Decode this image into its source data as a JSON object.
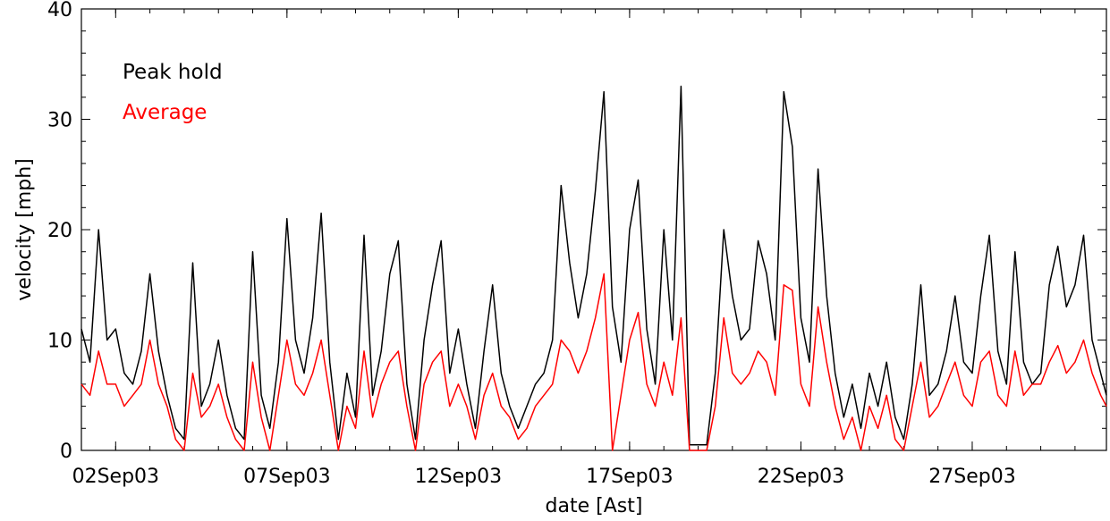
{
  "chart_data": {
    "type": "line",
    "title": "",
    "xlabel": "date [Ast]",
    "ylabel": "velocity [mph]",
    "xlim": [
      "2003-09-01T00:00",
      "2003-09-30T22:00"
    ],
    "ylim": [
      0,
      40
    ],
    "x_ticks": [
      "02Sep03",
      "07Sep03",
      "12Sep03",
      "17Sep03",
      "22Sep03",
      "27Sep03"
    ],
    "x_tick_dates": [
      "2003-09-02",
      "2003-09-07",
      "2003-09-12",
      "2003-09-17",
      "2003-09-22",
      "2003-09-27"
    ],
    "y_ticks": [
      "0",
      "10",
      "20",
      "30",
      "40"
    ],
    "y_tick_values": [
      0,
      10,
      20,
      30,
      40
    ],
    "grid": false,
    "legend": "top-left",
    "series": [
      {
        "name": "Peak hold",
        "color": "#000000",
        "points": [
          [
            "2003-09-01T00:00",
            11
          ],
          [
            "2003-09-01T06:00",
            8
          ],
          [
            "2003-09-01T12:00",
            20
          ],
          [
            "2003-09-01T18:00",
            10
          ],
          [
            "2003-09-02T00:00",
            11
          ],
          [
            "2003-09-02T06:00",
            7
          ],
          [
            "2003-09-02T12:00",
            6
          ],
          [
            "2003-09-02T18:00",
            9
          ],
          [
            "2003-09-03T00:00",
            16
          ],
          [
            "2003-09-03T06:00",
            9
          ],
          [
            "2003-09-03T12:00",
            5
          ],
          [
            "2003-09-03T18:00",
            2
          ],
          [
            "2003-09-04T00:00",
            1
          ],
          [
            "2003-09-04T06:00",
            17
          ],
          [
            "2003-09-04T12:00",
            4
          ],
          [
            "2003-09-04T18:00",
            6
          ],
          [
            "2003-09-05T00:00",
            10
          ],
          [
            "2003-09-05T06:00",
            5
          ],
          [
            "2003-09-05T12:00",
            2
          ],
          [
            "2003-09-05T18:00",
            1
          ],
          [
            "2003-09-06T00:00",
            18
          ],
          [
            "2003-09-06T06:00",
            5
          ],
          [
            "2003-09-06T12:00",
            2
          ],
          [
            "2003-09-06T18:00",
            8
          ],
          [
            "2003-09-07T00:00",
            21
          ],
          [
            "2003-09-07T06:00",
            10
          ],
          [
            "2003-09-07T12:00",
            7
          ],
          [
            "2003-09-07T18:00",
            12
          ],
          [
            "2003-09-08T00:00",
            21.5
          ],
          [
            "2003-09-08T06:00",
            8
          ],
          [
            "2003-09-08T12:00",
            1
          ],
          [
            "2003-09-08T18:00",
            7
          ],
          [
            "2003-09-09T00:00",
            3
          ],
          [
            "2003-09-09T06:00",
            19.5
          ],
          [
            "2003-09-09T12:00",
            5
          ],
          [
            "2003-09-09T18:00",
            9
          ],
          [
            "2003-09-10T00:00",
            16
          ],
          [
            "2003-09-10T06:00",
            19
          ],
          [
            "2003-09-10T12:00",
            6
          ],
          [
            "2003-09-10T18:00",
            1
          ],
          [
            "2003-09-11T00:00",
            10
          ],
          [
            "2003-09-11T06:00",
            15
          ],
          [
            "2003-09-11T12:00",
            19
          ],
          [
            "2003-09-11T18:00",
            7
          ],
          [
            "2003-09-12T00:00",
            11
          ],
          [
            "2003-09-12T06:00",
            6
          ],
          [
            "2003-09-12T12:00",
            2
          ],
          [
            "2003-09-12T18:00",
            9
          ],
          [
            "2003-09-13T00:00",
            15
          ],
          [
            "2003-09-13T06:00",
            7
          ],
          [
            "2003-09-13T12:00",
            4
          ],
          [
            "2003-09-13T18:00",
            2
          ],
          [
            "2003-09-14T00:00",
            4
          ],
          [
            "2003-09-14T06:00",
            6
          ],
          [
            "2003-09-14T12:00",
            7
          ],
          [
            "2003-09-14T18:00",
            10
          ],
          [
            "2003-09-15T00:00",
            24
          ],
          [
            "2003-09-15T06:00",
            17
          ],
          [
            "2003-09-15T12:00",
            12
          ],
          [
            "2003-09-15T18:00",
            16
          ],
          [
            "2003-09-16T00:00",
            23.5
          ],
          [
            "2003-09-16T06:00",
            32.5
          ],
          [
            "2003-09-16T12:00",
            13
          ],
          [
            "2003-09-16T18:00",
            8
          ],
          [
            "2003-09-17T00:00",
            20
          ],
          [
            "2003-09-17T06:00",
            24.5
          ],
          [
            "2003-09-17T12:00",
            11
          ],
          [
            "2003-09-17T18:00",
            6
          ],
          [
            "2003-09-18T00:00",
            20
          ],
          [
            "2003-09-18T06:00",
            10
          ],
          [
            "2003-09-18T12:00",
            33
          ],
          [
            "2003-09-18T18:00",
            0.5
          ],
          [
            "2003-09-19T00:00",
            0.5
          ],
          [
            "2003-09-19T06:00",
            0.5
          ],
          [
            "2003-09-19T12:00",
            7
          ],
          [
            "2003-09-19T18:00",
            20
          ],
          [
            "2003-09-20T00:00",
            14
          ],
          [
            "2003-09-20T06:00",
            10
          ],
          [
            "2003-09-20T12:00",
            11
          ],
          [
            "2003-09-20T18:00",
            19
          ],
          [
            "2003-09-21T00:00",
            16
          ],
          [
            "2003-09-21T06:00",
            10
          ],
          [
            "2003-09-21T12:00",
            32.5
          ],
          [
            "2003-09-21T18:00",
            27.5
          ],
          [
            "2003-09-22T00:00",
            12
          ],
          [
            "2003-09-22T06:00",
            8
          ],
          [
            "2003-09-22T12:00",
            25.5
          ],
          [
            "2003-09-22T18:00",
            14
          ],
          [
            "2003-09-23T00:00",
            7
          ],
          [
            "2003-09-23T06:00",
            3
          ],
          [
            "2003-09-23T12:00",
            6
          ],
          [
            "2003-09-23T18:00",
            2
          ],
          [
            "2003-09-24T00:00",
            7
          ],
          [
            "2003-09-24T06:00",
            4
          ],
          [
            "2003-09-24T12:00",
            8
          ],
          [
            "2003-09-24T18:00",
            3
          ],
          [
            "2003-09-25T00:00",
            1
          ],
          [
            "2003-09-25T06:00",
            6
          ],
          [
            "2003-09-25T12:00",
            15
          ],
          [
            "2003-09-25T18:00",
            5
          ],
          [
            "2003-09-26T00:00",
            6
          ],
          [
            "2003-09-26T06:00",
            9
          ],
          [
            "2003-09-26T12:00",
            14
          ],
          [
            "2003-09-26T18:00",
            8
          ],
          [
            "2003-09-27T00:00",
            7
          ],
          [
            "2003-09-27T06:00",
            14
          ],
          [
            "2003-09-27T12:00",
            19.5
          ],
          [
            "2003-09-27T18:00",
            9
          ],
          [
            "2003-09-28T00:00",
            6
          ],
          [
            "2003-09-28T06:00",
            18
          ],
          [
            "2003-09-28T12:00",
            8
          ],
          [
            "2003-09-28T18:00",
            6
          ],
          [
            "2003-09-29T00:00",
            7
          ],
          [
            "2003-09-29T06:00",
            15
          ],
          [
            "2003-09-29T12:00",
            18.5
          ],
          [
            "2003-09-29T18:00",
            13
          ],
          [
            "2003-09-30T00:00",
            15
          ],
          [
            "2003-09-30T06:00",
            19.5
          ],
          [
            "2003-09-30T12:00",
            10
          ],
          [
            "2003-09-30T18:00",
            7
          ],
          [
            "2003-09-30T22:00",
            5
          ]
        ]
      },
      {
        "name": "Average",
        "color": "#ff0000",
        "points": [
          [
            "2003-09-01T00:00",
            6
          ],
          [
            "2003-09-01T06:00",
            5
          ],
          [
            "2003-09-01T12:00",
            9
          ],
          [
            "2003-09-01T18:00",
            6
          ],
          [
            "2003-09-02T00:00",
            6
          ],
          [
            "2003-09-02T06:00",
            4
          ],
          [
            "2003-09-02T12:00",
            5
          ],
          [
            "2003-09-02T18:00",
            6
          ],
          [
            "2003-09-03T00:00",
            10
          ],
          [
            "2003-09-03T06:00",
            6
          ],
          [
            "2003-09-03T12:00",
            4
          ],
          [
            "2003-09-03T18:00",
            1
          ],
          [
            "2003-09-04T00:00",
            0
          ],
          [
            "2003-09-04T06:00",
            7
          ],
          [
            "2003-09-04T12:00",
            3
          ],
          [
            "2003-09-04T18:00",
            4
          ],
          [
            "2003-09-05T00:00",
            6
          ],
          [
            "2003-09-05T06:00",
            3
          ],
          [
            "2003-09-05T12:00",
            1
          ],
          [
            "2003-09-05T18:00",
            0
          ],
          [
            "2003-09-06T00:00",
            8
          ],
          [
            "2003-09-06T06:00",
            3
          ],
          [
            "2003-09-06T12:00",
            0
          ],
          [
            "2003-09-06T18:00",
            5
          ],
          [
            "2003-09-07T00:00",
            10
          ],
          [
            "2003-09-07T06:00",
            6
          ],
          [
            "2003-09-07T12:00",
            5
          ],
          [
            "2003-09-07T18:00",
            7
          ],
          [
            "2003-09-08T00:00",
            10
          ],
          [
            "2003-09-08T06:00",
            5
          ],
          [
            "2003-09-08T12:00",
            0
          ],
          [
            "2003-09-08T18:00",
            4
          ],
          [
            "2003-09-09T00:00",
            2
          ],
          [
            "2003-09-09T06:00",
            9
          ],
          [
            "2003-09-09T12:00",
            3
          ],
          [
            "2003-09-09T18:00",
            6
          ],
          [
            "2003-09-10T00:00",
            8
          ],
          [
            "2003-09-10T06:00",
            9
          ],
          [
            "2003-09-10T12:00",
            4
          ],
          [
            "2003-09-10T18:00",
            0
          ],
          [
            "2003-09-11T00:00",
            6
          ],
          [
            "2003-09-11T06:00",
            8
          ],
          [
            "2003-09-11T12:00",
            9
          ],
          [
            "2003-09-11T18:00",
            4
          ],
          [
            "2003-09-12T00:00",
            6
          ],
          [
            "2003-09-12T06:00",
            4
          ],
          [
            "2003-09-12T12:00",
            1
          ],
          [
            "2003-09-12T18:00",
            5
          ],
          [
            "2003-09-13T00:00",
            7
          ],
          [
            "2003-09-13T06:00",
            4
          ],
          [
            "2003-09-13T12:00",
            3
          ],
          [
            "2003-09-13T18:00",
            1
          ],
          [
            "2003-09-14T00:00",
            2
          ],
          [
            "2003-09-14T06:00",
            4
          ],
          [
            "2003-09-14T12:00",
            5
          ],
          [
            "2003-09-14T18:00",
            6
          ],
          [
            "2003-09-15T00:00",
            10
          ],
          [
            "2003-09-15T06:00",
            9
          ],
          [
            "2003-09-15T12:00",
            7
          ],
          [
            "2003-09-15T18:00",
            9
          ],
          [
            "2003-09-16T00:00",
            12
          ],
          [
            "2003-09-16T06:00",
            16
          ],
          [
            "2003-09-16T12:00",
            0
          ],
          [
            "2003-09-16T18:00",
            5
          ],
          [
            "2003-09-17T00:00",
            10
          ],
          [
            "2003-09-17T06:00",
            12.5
          ],
          [
            "2003-09-17T12:00",
            6
          ],
          [
            "2003-09-17T18:00",
            4
          ],
          [
            "2003-09-18T00:00",
            8
          ],
          [
            "2003-09-18T06:00",
            5
          ],
          [
            "2003-09-18T12:00",
            12
          ],
          [
            "2003-09-18T18:00",
            0
          ],
          [
            "2003-09-19T00:00",
            0
          ],
          [
            "2003-09-19T06:00",
            0
          ],
          [
            "2003-09-19T12:00",
            4
          ],
          [
            "2003-09-19T18:00",
            12
          ],
          [
            "2003-09-20T00:00",
            7
          ],
          [
            "2003-09-20T06:00",
            6
          ],
          [
            "2003-09-20T12:00",
            7
          ],
          [
            "2003-09-20T18:00",
            9
          ],
          [
            "2003-09-21T00:00",
            8
          ],
          [
            "2003-09-21T06:00",
            5
          ],
          [
            "2003-09-21T12:00",
            15
          ],
          [
            "2003-09-21T18:00",
            14.5
          ],
          [
            "2003-09-22T00:00",
            6
          ],
          [
            "2003-09-22T06:00",
            4
          ],
          [
            "2003-09-22T12:00",
            13
          ],
          [
            "2003-09-22T18:00",
            8
          ],
          [
            "2003-09-23T00:00",
            4
          ],
          [
            "2003-09-23T06:00",
            1
          ],
          [
            "2003-09-23T12:00",
            3
          ],
          [
            "2003-09-23T18:00",
            0
          ],
          [
            "2003-09-24T00:00",
            4
          ],
          [
            "2003-09-24T06:00",
            2
          ],
          [
            "2003-09-24T12:00",
            5
          ],
          [
            "2003-09-24T18:00",
            1
          ],
          [
            "2003-09-25T00:00",
            0
          ],
          [
            "2003-09-25T06:00",
            4
          ],
          [
            "2003-09-25T12:00",
            8
          ],
          [
            "2003-09-25T18:00",
            3
          ],
          [
            "2003-09-26T00:00",
            4
          ],
          [
            "2003-09-26T06:00",
            6
          ],
          [
            "2003-09-26T12:00",
            8
          ],
          [
            "2003-09-26T18:00",
            5
          ],
          [
            "2003-09-27T00:00",
            4
          ],
          [
            "2003-09-27T06:00",
            8
          ],
          [
            "2003-09-27T12:00",
            9
          ],
          [
            "2003-09-27T18:00",
            5
          ],
          [
            "2003-09-28T00:00",
            4
          ],
          [
            "2003-09-28T06:00",
            9
          ],
          [
            "2003-09-28T12:00",
            5
          ],
          [
            "2003-09-28T18:00",
            6
          ],
          [
            "2003-09-29T00:00",
            6
          ],
          [
            "2003-09-29T06:00",
            8
          ],
          [
            "2003-09-29T12:00",
            9.5
          ],
          [
            "2003-09-29T18:00",
            7
          ],
          [
            "2003-09-30T00:00",
            8
          ],
          [
            "2003-09-30T06:00",
            10
          ],
          [
            "2003-09-30T12:00",
            7
          ],
          [
            "2003-09-30T18:00",
            5
          ],
          [
            "2003-09-30T22:00",
            4
          ]
        ]
      }
    ]
  }
}
